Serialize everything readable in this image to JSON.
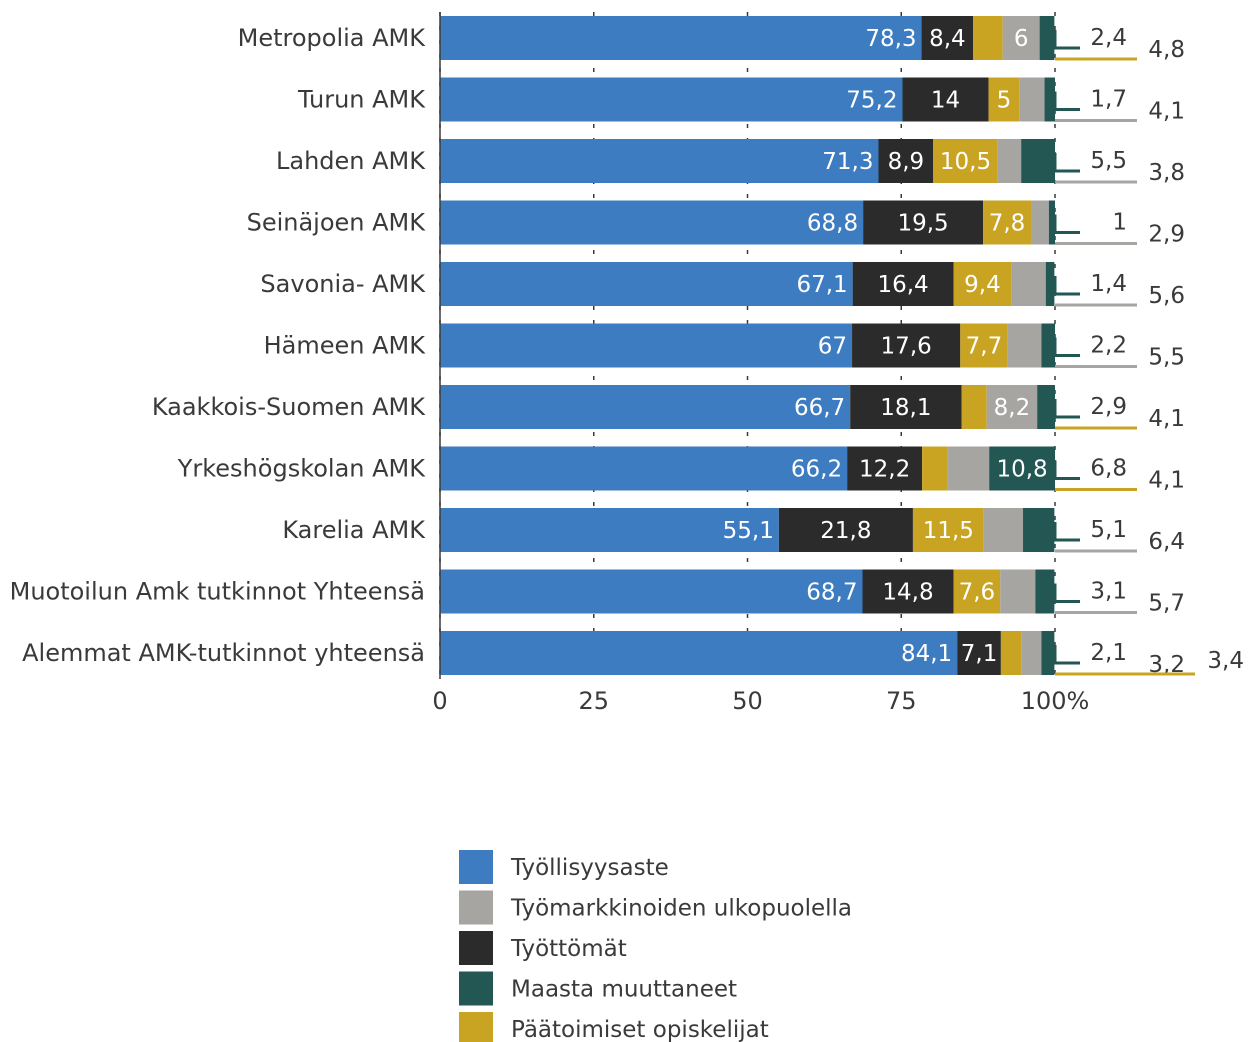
{
  "chart_data": {
    "type": "bar",
    "orientation": "horizontal",
    "stacked": true,
    "xlim": [
      0,
      100
    ],
    "x_ticks": [
      "0",
      "25",
      "50",
      "75",
      "100%"
    ],
    "grid": true,
    "legend_position": "bottom",
    "categories": [
      "Metropolia AMK",
      "Turun AMK",
      "Lahden AMK",
      "Seinäjoen AMK",
      "Savonia- AMK",
      "Hämeen  AMK",
      "Kaakkois-Suomen AMK",
      "Yrkeshögskolan AMK",
      "Karelia AMK",
      "Muotoilun Amk tutkinnot Yhteensä",
      "Alemmat AMK-tutkinnot yhteensä"
    ],
    "series": [
      {
        "name": "Työllisyysaste",
        "color": "#3e7cc1",
        "values": [
          78.3,
          75.2,
          71.3,
          68.8,
          67.1,
          67,
          66.7,
          66.2,
          55.1,
          68.7,
          84.1
        ],
        "labels": [
          "78,3",
          "75,2",
          "71,3",
          "68,8",
          "67,1",
          "67",
          "66,7",
          "66,2",
          "55,1",
          "68,7",
          "84,1"
        ]
      },
      {
        "name": "Työttömät",
        "color": "#2b2b2b",
        "values": [
          8.4,
          14,
          8.9,
          19.5,
          16.4,
          17.6,
          18.1,
          12.2,
          21.8,
          14.8,
          7.1
        ],
        "labels": [
          "8,4",
          "14",
          "8,9",
          "19,5",
          "16,4",
          "17,6",
          "18,1",
          "12,2",
          "21,8",
          "14,8",
          "7,1"
        ]
      },
      {
        "name": "Päätoimiset opiskelijat",
        "color": "#c9a423",
        "values": [
          4.8,
          5,
          10.5,
          7.8,
          9.4,
          7.7,
          4.1,
          4.1,
          11.5,
          7.6,
          3.4
        ],
        "labels": [
          "",
          "5",
          "10,5",
          "7,8",
          "9,4",
          "7,7",
          "",
          "",
          "11,5",
          "7,6",
          ""
        ]
      },
      {
        "name": "Työmarkkinoiden ulkopuolella",
        "color": "#a7a5a2",
        "values": [
          6,
          4.1,
          3.8,
          2.9,
          5.6,
          5.5,
          8.2,
          6.8,
          6.4,
          5.7,
          3.2
        ],
        "labels": [
          "6",
          "",
          "",
          "",
          "",
          "",
          "8,2",
          "",
          "",
          "",
          ""
        ]
      },
      {
        "name": "Maasta muuttaneet",
        "color": "#225754",
        "values": [
          2.4,
          1.7,
          5.5,
          1,
          1.4,
          2.2,
          2.9,
          10.8,
          5.1,
          3.1,
          2.1
        ],
        "labels": [
          "",
          "",
          "",
          "",
          "",
          "",
          "",
          "10,8",
          "",
          "",
          ""
        ]
      }
    ],
    "callouts": [
      {
        "line_series": "Maasta muuttaneet",
        "label": "2,4"
      },
      {
        "line_series": "Päätoimiset opiskelijat",
        "label": "4,8"
      },
      {
        "line_series": "Maasta muuttaneet",
        "label": "1,7"
      },
      {
        "line_series": "Työmarkkinoiden ulkopuolella",
        "label": "4,1"
      },
      {
        "line_series": "Maasta muuttaneet",
        "label": "5,5"
      },
      {
        "line_series": "Työmarkkinoiden ulkopuolella",
        "label": "3,8"
      },
      {
        "line_series": "Maasta muuttaneet",
        "label": "1"
      },
      {
        "line_series": "Työmarkkinoiden ulkopuolella",
        "label": "2,9"
      },
      {
        "line_series": "Maasta muuttaneet",
        "label": "1,4"
      },
      {
        "line_series": "Työmarkkinoiden ulkopuolella",
        "label": "5,6"
      },
      {
        "line_series": "Maasta muuttaneet",
        "label": "2,2"
      },
      {
        "line_series": "Työmarkkinoiden ulkopuolella",
        "label": "5,5"
      },
      {
        "line_series": "Maasta muuttaneet",
        "label": "2,9"
      },
      {
        "line_series": "Päätoimiset opiskelijat",
        "label": "4,1"
      },
      {
        "line_series": "Maasta muuttaneet",
        "label": "6,8"
      },
      {
        "line_series": "Päätoimiset opiskelijat",
        "label": "4,1"
      },
      {
        "line_series": "Maasta muuttaneet",
        "label": "5,1"
      },
      {
        "line_series": "Työmarkkinoiden ulkopuolella",
        "label": "6,4"
      },
      {
        "line_series": "Maasta muuttaneet",
        "label": "3,1"
      },
      {
        "line_series": "Työmarkkinoiden ulkopuolella",
        "label": "5,7"
      },
      {
        "line_series": "Maasta muuttaneet",
        "label": "2,1"
      },
      {
        "line_series": "Työmarkkinoiden ulkopuolella",
        "label": "3,2"
      },
      {
        "line_series": "Päätoimiset opiskelijat",
        "label": "3,4"
      }
    ],
    "legend": [
      "Työllisyysaste",
      "Työmarkkinoiden ulkopuolella",
      "Työttömät",
      "Maasta muuttaneet",
      "Päätoimiset opiskelijat"
    ]
  }
}
